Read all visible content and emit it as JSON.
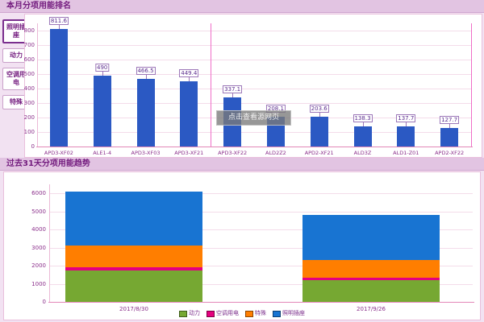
{
  "top_section": {
    "title": "本月分项用能排名",
    "sidebar": [
      {
        "label": "照明插座",
        "selected": true
      },
      {
        "label": "动力",
        "selected": false
      },
      {
        "label": "空调用电",
        "selected": false
      },
      {
        "label": "特殊",
        "selected": false
      }
    ]
  },
  "bottom_section": {
    "title": "过去31天分项用能趋势"
  },
  "watermark": {
    "text": "点击查看源网页"
  },
  "colors": {
    "page_bg": "#F2E2F2",
    "header_bg": "#E2C4E2",
    "header_text": "#731B7E",
    "panel_border": "#E9BFDC",
    "gridline": "#F4DCEA",
    "axis_text": "#8B2F8B",
    "ranking_bar": "#2B59C3",
    "baseline": "#E387B8",
    "separator_line": "#F06EC8",
    "series_power": "#76A832",
    "series_ac": "#E4007F",
    "series_special": "#FF7E00",
    "series_lighting": "#1874D2"
  },
  "chart_data": [
    {
      "id": "ranking",
      "type": "bar",
      "title": "本月分项用能排名",
      "categories": [
        "APD3-XF02",
        "ALE1-4",
        "APD3-XF03",
        "APD3-XF21",
        "APD3-XF22",
        "ALD2Z2",
        "APD2-XF21",
        "ALD3Z",
        "ALD1-Z01",
        "APD2-XF22"
      ],
      "values": [
        811.6,
        490,
        466.5,
        449.4,
        337.1,
        208.1,
        203.6,
        138.3,
        137.7,
        127.7
      ],
      "bar_color": "#2B59C3",
      "y_ticks": [
        0,
        100,
        200,
        300,
        400,
        500,
        600,
        700,
        800
      ],
      "ylim": [
        0,
        850
      ],
      "xlabel": "",
      "ylabel": "",
      "grid": true,
      "data_labels": true,
      "legend_position": "none"
    },
    {
      "id": "trend",
      "type": "bar-stacked",
      "title": "过去31天分项用能趋势",
      "categories": [
        "2017/8/30",
        "2017/9/26"
      ],
      "series": [
        {
          "name": "动力",
          "color": "#76A832",
          "values": [
            1750,
            1200
          ]
        },
        {
          "name": "空调用电",
          "color": "#E4007F",
          "values": [
            150,
            150
          ]
        },
        {
          "name": "特殊",
          "color": "#FF7E00",
          "values": [
            1200,
            950
          ]
        },
        {
          "name": "照明插座",
          "color": "#1874D2",
          "values": [
            3000,
            2500
          ]
        }
      ],
      "y_ticks": [
        0,
        1000,
        2000,
        3000,
        4000,
        5000,
        6000
      ],
      "ylim": [
        0,
        6500
      ],
      "xlabel": "",
      "ylabel": "",
      "grid": true,
      "legend_position": "bottom"
    }
  ]
}
